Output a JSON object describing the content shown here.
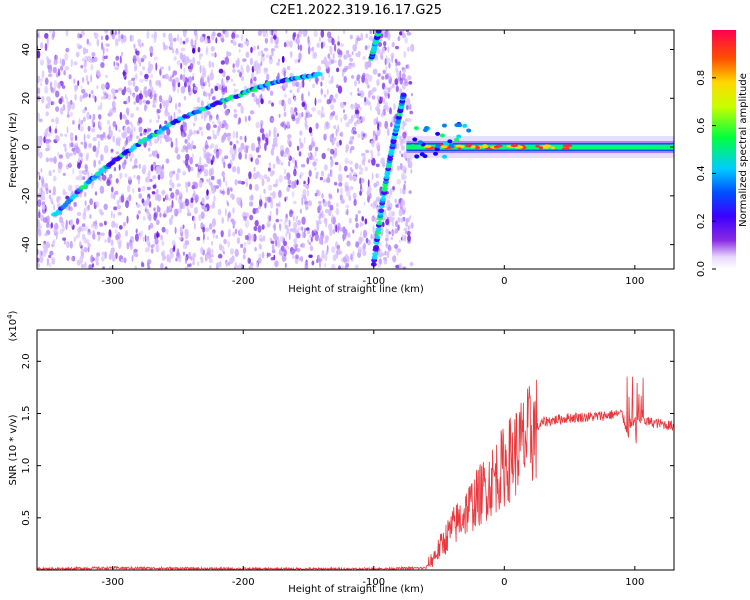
{
  "title": "C2E1.2022.319.16.17.G25",
  "chart_data": [
    {
      "type": "heatmap",
      "xlabel": "Height of straight line (km)",
      "ylabel": "Frequency (Hz)",
      "xlim": [
        -358,
        130
      ],
      "ylim": [
        -50,
        48
      ],
      "xticks": [
        -300,
        -200,
        -100,
        0,
        100
      ],
      "xtick_labels": [
        "-300",
        "-200",
        "-100",
        "0",
        "100"
      ],
      "yticks": [
        -40,
        -20,
        0,
        20,
        40
      ],
      "ytick_labels": [
        "-40",
        "-20",
        "0",
        "20",
        "40"
      ],
      "noise_region": {
        "x": [
          -358,
          -75
        ],
        "y": [
          -50,
          48
        ]
      },
      "features": [
        {
          "name": "curved-track",
          "x": [
            -345,
            -320,
            -300,
            -275,
            -250,
            -225,
            -200,
            -180,
            -160,
            -140
          ],
          "y": [
            -28,
            -15,
            -6,
            3,
            11,
            17,
            22,
            26,
            28,
            30
          ]
        },
        {
          "name": "descending-track",
          "x": [
            -100,
            -95,
            -90,
            -85,
            -80,
            -77
          ],
          "y": [
            -48,
            -28,
            -12,
            2,
            14,
            22
          ]
        },
        {
          "name": "rising-track",
          "x": [
            -102,
            -99,
            -96
          ],
          "y": [
            36,
            42,
            48
          ]
        },
        {
          "name": "baseline",
          "x": [
            -75,
            130
          ],
          "y": [
            0,
            0
          ]
        }
      ],
      "colorbar": {
        "label": "Normalized spectral amplitude",
        "range": [
          0,
          1
        ],
        "ticks": [
          0.0,
          0.2,
          0.4,
          0.6,
          0.8
        ],
        "tick_labels": [
          "0.0",
          "0.2",
          "0.4",
          "0.6",
          "0.8"
        ]
      },
      "grid": false
    },
    {
      "type": "line",
      "xlabel": "Height of straight line (km)",
      "ylabel": "SNR (10 * v/v)",
      "ylabel_scale": "(x10",
      "ylabel_scale_exp": "4",
      "ylabel_scale_close": ")",
      "xlim": [
        -358,
        130
      ],
      "ylim": [
        0,
        2.3
      ],
      "xticks": [
        -300,
        -200,
        -100,
        0,
        100
      ],
      "xtick_labels": [
        "-300",
        "-200",
        "-100",
        "0",
        "100"
      ],
      "yticks": [
        0.5,
        1.0,
        1.5,
        2.0
      ],
      "ytick_labels": [
        "0.5",
        "1.0",
        "1.5",
        "2.0"
      ],
      "series": [
        {
          "color": "#e8383d",
          "x": [
            -358,
            -300,
            -200,
            -100,
            -60,
            -50,
            -40,
            -30,
            -20,
            -10,
            0,
            10,
            20,
            30,
            50,
            70,
            90,
            95,
            100,
            105,
            110,
            130
          ],
          "y": [
            0.01,
            0.02,
            0.01,
            0.01,
            0.02,
            0.2,
            0.4,
            0.55,
            0.7,
            0.85,
            1.0,
            1.15,
            1.3,
            1.42,
            1.46,
            1.47,
            1.5,
            1.3,
            1.45,
            1.44,
            1.42,
            1.38
          ]
        }
      ],
      "grid": false
    }
  ]
}
